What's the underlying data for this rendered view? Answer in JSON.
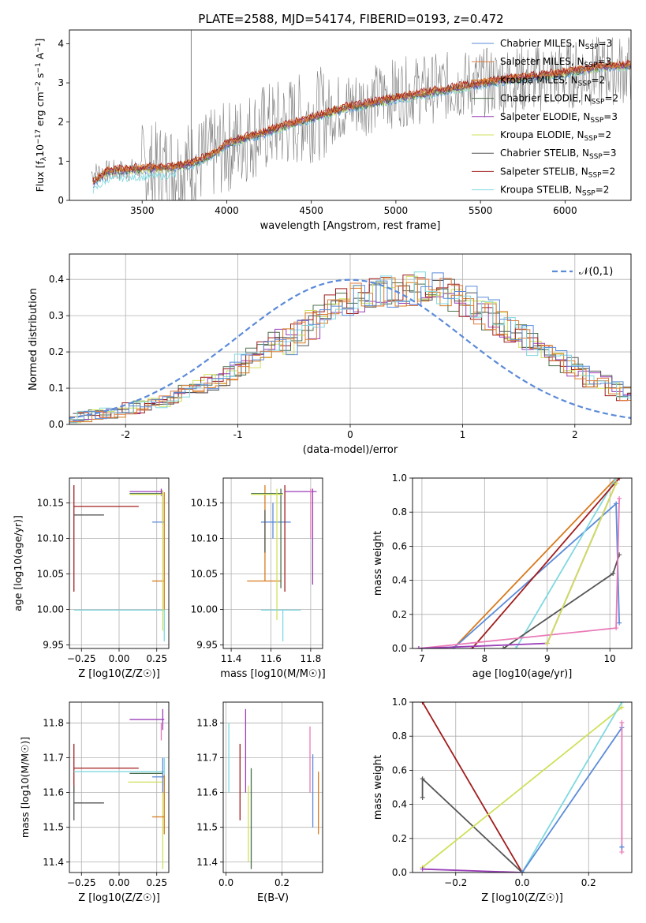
{
  "figure_title": "PLATE=2588, MJD=54174, FIBERID=0193, z=0.472",
  "colors": {
    "Chabrier MILES": "#5b8bd9",
    "Salpeter MILES": "#e07b3a",
    "Kroupa MILES": "#d87a1c",
    "Chabrier ELODIE": "#4a6e4a",
    "Salpeter ELODIE": "#9b3fb8",
    "Kroupa ELODIE": "#cfe05a",
    "Chabrier STELIB": "#555555",
    "Salpeter STELIB": "#a11d1d",
    "Kroupa STELIB": "#7fd8e0",
    "pink": "#e97ab8",
    "data": "#808080"
  },
  "chart_data": [
    {
      "id": "spectrum",
      "type": "line",
      "title": "",
      "xlabel": "wavelength [Angstrom, rest frame]",
      "ylabel": "Flux [f_λ 10^-17 erg cm^-2 s^-1 A^-1]",
      "xlim": [
        3070,
        6390
      ],
      "ylim": [
        0,
        4.35
      ],
      "xticks": [
        3500,
        4000,
        4500,
        5000,
        5500,
        6000
      ],
      "yticks": [
        0,
        1,
        2,
        3,
        4
      ],
      "grid": false,
      "legend_position": "top-right",
      "legend": [
        "Chabrier MILES, N_SSP=3",
        "Salpeter MILES, N_SSP=3",
        "Kroupa MILES, N_SSP=2",
        "Chabrier ELODIE, N_SSP=2",
        "Salpeter ELODIE, N_SSP=3",
        "Kroupa ELODIE, N_SSP=2",
        "Chabrier STELIB, N_SSP=3",
        "Salpeter STELIB, N_SSP=2",
        "Kroupa STELIB, N_SSP=2"
      ],
      "data_trend": {
        "x": [
          3200,
          3500,
          3800,
          4000,
          4200,
          4500,
          4700,
          5000,
          5200,
          5500,
          5800,
          6000,
          6200,
          6390
        ],
        "y": [
          0.7,
          0.8,
          0.9,
          1.35,
          1.8,
          2.15,
          2.4,
          2.75,
          2.85,
          3.0,
          3.1,
          3.2,
          3.3,
          3.35
        ]
      },
      "model_trend": {
        "x": [
          3210,
          3300,
          3500,
          3700,
          3800,
          3950,
          4000,
          4200,
          4500,
          4700,
          5000,
          5200,
          5400,
          5600,
          5800,
          6000,
          6200,
          6390
        ],
        "y": [
          0.45,
          0.75,
          0.8,
          0.85,
          0.95,
          1.25,
          1.45,
          1.7,
          2.1,
          2.35,
          2.6,
          2.75,
          2.9,
          3.05,
          3.15,
          3.25,
          3.4,
          3.45
        ]
      }
    },
    {
      "id": "residuals",
      "type": "line",
      "title": "",
      "xlabel": "(data-model)/error",
      "ylabel": "Normed distribution",
      "xlim": [
        -2.5,
        2.5
      ],
      "ylim": [
        0,
        0.47
      ],
      "xticks": [
        -2,
        -1,
        0,
        1,
        2
      ],
      "yticks": [
        0.0,
        0.1,
        0.2,
        0.3,
        0.4
      ],
      "grid": true,
      "legend_position": "top-right",
      "legend": [
        "𝒩(0,1)"
      ],
      "histogram_bin_width": 0.1,
      "base_histogram": [
        0.018,
        0.022,
        0.026,
        0.03,
        0.035,
        0.042,
        0.048,
        0.055,
        0.065,
        0.075,
        0.088,
        0.1,
        0.115,
        0.13,
        0.148,
        0.165,
        0.185,
        0.205,
        0.228,
        0.25,
        0.272,
        0.295,
        0.318,
        0.34,
        0.355,
        0.368,
        0.378,
        0.385,
        0.388,
        0.39,
        0.388,
        0.385,
        0.378,
        0.368,
        0.355,
        0.34,
        0.322,
        0.302,
        0.282,
        0.262,
        0.242,
        0.222,
        0.202,
        0.182,
        0.162,
        0.145,
        0.128,
        0.112,
        0.098,
        0.085,
        0.075
      ]
    },
    {
      "id": "age_vs_Z",
      "type": "scatter",
      "xlabel": "Z [log10(Z/Z☉)]",
      "ylabel": "age  [log10(age/yr)]",
      "xlim": [
        -0.33,
        0.33
      ],
      "ylim": [
        9.945,
        10.185
      ],
      "xticks": [
        -0.25,
        0.0,
        0.25
      ],
      "xticklabels": [
        "−0.25",
        "0.00",
        "0.25"
      ],
      "yticks": [
        9.95,
        10.0,
        10.05,
        10.1,
        10.15
      ],
      "grid": true,
      "points": [
        {
          "x": -0.3,
          "y": 10.145,
          "xlo": -0.3,
          "xhi": 0.13,
          "ylo": 10.025,
          "yhi": 10.175,
          "c": "Salpeter STELIB"
        },
        {
          "x": -0.3,
          "y": 10.133,
          "xlo": -0.3,
          "xhi": -0.1,
          "ylo": 10.133,
          "yhi": 10.133,
          "c": "Chabrier STELIB"
        },
        {
          "x": 0.29,
          "y": 10.163,
          "xlo": 0.07,
          "xhi": 0.29,
          "ylo": 10.12,
          "yhi": 10.165,
          "c": "Chabrier ELODIE"
        },
        {
          "x": 0.28,
          "y": 10.166,
          "xlo": 0.07,
          "xhi": 0.29,
          "ylo": 10.16,
          "yhi": 10.17,
          "c": "Salpeter ELODIE"
        },
        {
          "x": 0.29,
          "y": 10.162,
          "xlo": 0.07,
          "xhi": 0.29,
          "ylo": 10.15,
          "yhi": 10.168,
          "c": "Kroupa ELODIE"
        },
        {
          "x": 0.28,
          "y": 10.123,
          "xlo": 0.22,
          "xhi": 0.3,
          "ylo": 10.123,
          "yhi": 10.123,
          "c": "Chabrier MILES"
        },
        {
          "x": 0.3,
          "y": 10.04,
          "xlo": 0.22,
          "xhi": 0.3,
          "ylo": 10.0,
          "yhi": 10.165,
          "c": "Kroupa MILES"
        },
        {
          "x": 0.3,
          "y": 9.999,
          "xlo": -0.3,
          "xhi": 0.3,
          "ylo": 9.955,
          "yhi": 10.0,
          "c": "Kroupa STELIB"
        },
        {
          "x": 0.29,
          "y": 10.0,
          "xlo": 0.29,
          "xhi": 0.29,
          "ylo": 9.97,
          "yhi": 10.16,
          "c": "Kroupa ELODIE"
        }
      ]
    },
    {
      "id": "age_vs_mass",
      "type": "scatter",
      "xlabel": "mass [log10(M/M☉)]",
      "ylabel": "",
      "xlim": [
        11.36,
        11.86
      ],
      "ylim": [
        9.945,
        10.185
      ],
      "xticks": [
        11.4,
        11.6,
        11.8
      ],
      "yticks": [
        9.95,
        10.0,
        10.05,
        10.1,
        10.15
      ],
      "grid": true,
      "points": [
        {
          "x": 11.57,
          "y": 10.04,
          "xlo": 11.48,
          "xhi": 11.65,
          "ylo": 10.04,
          "yhi": 10.175,
          "c": "Kroupa MILES"
        },
        {
          "x": 11.61,
          "y": 10.123,
          "xlo": 11.55,
          "xhi": 11.7,
          "ylo": 10.1,
          "yhi": 10.15,
          "c": "Chabrier MILES"
        },
        {
          "x": 11.57,
          "y": 10.133,
          "xlo": 11.57,
          "xhi": 11.57,
          "ylo": 10.08,
          "yhi": 10.14,
          "c": "Chabrier STELIB"
        },
        {
          "x": 11.67,
          "y": 10.145,
          "xlo": 11.67,
          "xhi": 11.67,
          "ylo": 10.025,
          "yhi": 10.175,
          "c": "Salpeter STELIB"
        },
        {
          "x": 11.65,
          "y": 10.163,
          "xlo": 11.5,
          "xhi": 11.66,
          "ylo": 10.03,
          "yhi": 10.17,
          "c": "Chabrier ELODIE"
        },
        {
          "x": 11.81,
          "y": 10.166,
          "xlo": 11.67,
          "xhi": 11.83,
          "ylo": 10.035,
          "yhi": 10.17,
          "c": "Salpeter ELODIE"
        },
        {
          "x": 11.63,
          "y": 10.162,
          "xlo": 11.5,
          "xhi": 11.66,
          "ylo": 9.985,
          "yhi": 10.17,
          "c": "Kroupa ELODIE"
        },
        {
          "x": 11.66,
          "y": 9.999,
          "xlo": 11.55,
          "xhi": 11.75,
          "ylo": 9.955,
          "yhi": 10.0,
          "c": "Kroupa STELIB"
        },
        {
          "x": 11.8,
          "y": 10.167,
          "xlo": 11.8,
          "xhi": 11.8,
          "ylo": 10.1,
          "yhi": 10.17,
          "c": "pink"
        }
      ]
    },
    {
      "id": "massweight_vs_age",
      "type": "line",
      "xlabel": "age  [log10(age/yr)]",
      "ylabel": "mass weight",
      "xlim": [
        6.85,
        10.35
      ],
      "ylim": [
        0,
        1.0
      ],
      "xticks": [
        7,
        8,
        9,
        10
      ],
      "yticks": [
        0.0,
        0.2,
        0.4,
        0.6,
        0.8,
        1.0
      ],
      "grid": true,
      "series": [
        {
          "c": "Kroupa MILES",
          "x": [
            7.5,
            10.1
          ],
          "y": [
            0.0,
            1.0
          ]
        },
        {
          "c": "Chabrier MILES",
          "x": [
            7.5,
            10.1,
            10.15
          ],
          "y": [
            0.0,
            0.85,
            0.15
          ]
        },
        {
          "c": "Kroupa STELIB",
          "x": [
            8.5,
            10.1
          ],
          "y": [
            0.0,
            1.0
          ]
        },
        {
          "c": "Salpeter STELIB",
          "x": [
            7.8,
            10.15
          ],
          "y": [
            0.0,
            1.0
          ]
        },
        {
          "c": "Chabrier STELIB",
          "x": [
            8.3,
            10.05,
            10.15
          ],
          "y": [
            0.0,
            0.44,
            0.55
          ]
        },
        {
          "c": "pink",
          "x": [
            6.95,
            10.1,
            10.15
          ],
          "y": [
            0.0,
            0.12,
            0.88
          ]
        },
        {
          "c": "Salpeter ELODIE",
          "x": [
            6.95,
            9.0,
            10.1
          ],
          "y": [
            0.0,
            0.03,
            0.97
          ]
        },
        {
          "c": "Kroupa ELODIE",
          "x": [
            9.0,
            10.1
          ],
          "y": [
            0.03,
            0.97
          ]
        }
      ]
    },
    {
      "id": "mass_vs_Z",
      "type": "scatter",
      "xlabel": "Z [log10(Z/Z☉)]",
      "ylabel": "mass [log10(M/M☉)]",
      "xlim": [
        -0.33,
        0.33
      ],
      "ylim": [
        11.37,
        11.86
      ],
      "xticks": [
        -0.25,
        0.0,
        0.25
      ],
      "xticklabels": [
        "−0.25",
        "0.00",
        "0.25"
      ],
      "yticks": [
        11.4,
        11.5,
        11.6,
        11.7,
        11.8
      ],
      "grid": true,
      "points": [
        {
          "x": -0.3,
          "y": 11.67,
          "xlo": -0.3,
          "xhi": 0.13,
          "ylo": 11.6,
          "yhi": 11.74,
          "c": "Salpeter STELIB"
        },
        {
          "x": -0.3,
          "y": 11.57,
          "xlo": -0.3,
          "xhi": -0.1,
          "ylo": 11.52,
          "yhi": 11.62,
          "c": "Chabrier STELIB"
        },
        {
          "x": 0.29,
          "y": 11.81,
          "xlo": 0.07,
          "xhi": 0.3,
          "ylo": 11.78,
          "yhi": 11.84,
          "c": "Salpeter ELODIE"
        },
        {
          "x": 0.29,
          "y": 11.655,
          "xlo": 0.07,
          "xhi": 0.29,
          "ylo": 11.655,
          "yhi": 11.655,
          "c": "Chabrier ELODIE"
        },
        {
          "x": 0.29,
          "y": 11.63,
          "xlo": 0.06,
          "xhi": 0.29,
          "ylo": 11.38,
          "yhi": 11.66,
          "c": "Kroupa ELODIE"
        },
        {
          "x": 0.3,
          "y": 11.66,
          "xlo": -0.3,
          "xhi": 0.3,
          "ylo": 11.62,
          "yhi": 11.7,
          "c": "Kroupa STELIB"
        },
        {
          "x": 0.29,
          "y": 11.645,
          "xlo": 0.22,
          "xhi": 0.3,
          "ylo": 11.6,
          "yhi": 11.7,
          "c": "Chabrier MILES"
        },
        {
          "x": 0.3,
          "y": 11.53,
          "xlo": 0.22,
          "xhi": 0.3,
          "ylo": 11.48,
          "yhi": 11.65,
          "c": "Kroupa MILES"
        },
        {
          "x": 0.28,
          "y": 11.8,
          "xlo": 0.28,
          "xhi": 0.28,
          "ylo": 11.75,
          "yhi": 11.8,
          "c": "pink"
        }
      ]
    },
    {
      "id": "mass_vs_EBV",
      "type": "scatter",
      "xlabel": "E(B-V)",
      "ylabel": "",
      "xlim": [
        -0.01,
        0.345
      ],
      "ylim": [
        11.37,
        11.86
      ],
      "xticks": [
        0.0,
        0.2
      ],
      "yticks": [
        11.4,
        11.5,
        11.6,
        11.7,
        11.8
      ],
      "grid": true,
      "points": [
        {
          "x": 0.01,
          "y": 11.7,
          "xlo": 0.01,
          "xhi": 0.01,
          "ylo": 11.6,
          "yhi": 11.8,
          "c": "Kroupa STELIB"
        },
        {
          "x": 0.05,
          "y": 11.63,
          "xlo": 0.05,
          "xhi": 0.05,
          "ylo": 11.52,
          "yhi": 11.74,
          "c": "Salpeter STELIB"
        },
        {
          "x": 0.07,
          "y": 11.67,
          "xlo": 0.07,
          "xhi": 0.07,
          "ylo": 11.6,
          "yhi": 11.84,
          "c": "Salpeter ELODIE"
        },
        {
          "x": 0.08,
          "y": 11.5,
          "xlo": 0.08,
          "xhi": 0.08,
          "ylo": 11.4,
          "yhi": 11.62,
          "c": "Kroupa ELODIE"
        },
        {
          "x": 0.09,
          "y": 11.55,
          "xlo": 0.09,
          "xhi": 0.09,
          "ylo": 11.38,
          "yhi": 11.67,
          "c": "Chabrier ELODIE"
        },
        {
          "x": 0.3,
          "y": 11.7,
          "xlo": 0.3,
          "xhi": 0.3,
          "ylo": 11.6,
          "yhi": 11.79,
          "c": "pink"
        },
        {
          "x": 0.31,
          "y": 11.6,
          "xlo": 0.31,
          "xhi": 0.31,
          "ylo": 11.5,
          "yhi": 11.71,
          "c": "Chabrier MILES"
        },
        {
          "x": 0.33,
          "y": 11.55,
          "xlo": 0.33,
          "xhi": 0.33,
          "ylo": 11.48,
          "yhi": 11.66,
          "c": "Kroupa MILES"
        }
      ]
    },
    {
      "id": "massweight_vs_Z",
      "type": "line",
      "xlabel": "Z [log10(Z/Z☉)]",
      "ylabel": "mass weight",
      "xlim": [
        -0.33,
        0.33
      ],
      "ylim": [
        0,
        1.0
      ],
      "xticks": [
        -0.2,
        0.0,
        0.2
      ],
      "xticklabels": [
        "−0.2",
        "0.0",
        "0.2"
      ],
      "yticks": [
        0.0,
        0.2,
        0.4,
        0.6,
        0.8,
        1.0
      ],
      "grid": true,
      "series": [
        {
          "c": "Salpeter STELIB",
          "x": [
            -0.3,
            0.0
          ],
          "y": [
            1.0,
            0.0
          ]
        },
        {
          "c": "Chabrier STELIB",
          "x": [
            -0.3,
            -0.3,
            0.0
          ],
          "y": [
            0.44,
            0.55,
            0.0
          ]
        },
        {
          "c": "Kroupa ELODIE",
          "x": [
            -0.3,
            0.3
          ],
          "y": [
            0.03,
            0.97
          ]
        },
        {
          "c": "Salpeter ELODIE",
          "x": [
            -0.3,
            0.0
          ],
          "y": [
            0.02,
            0.0
          ]
        },
        {
          "c": "Kroupa STELIB",
          "x": [
            0.0,
            0.3
          ],
          "y": [
            0.0,
            1.0
          ]
        },
        {
          "c": "Chabrier MILES",
          "x": [
            0.0,
            0.3
          ],
          "y": [
            0.0,
            0.85
          ]
        },
        {
          "c": "pink",
          "x": [
            0.3,
            0.3
          ],
          "y": [
            0.12,
            0.88
          ]
        },
        {
          "c": "Chabrier MILES",
          "x": [
            0.3,
            0.3
          ],
          "y": [
            0.15,
            0.15
          ]
        }
      ]
    }
  ]
}
